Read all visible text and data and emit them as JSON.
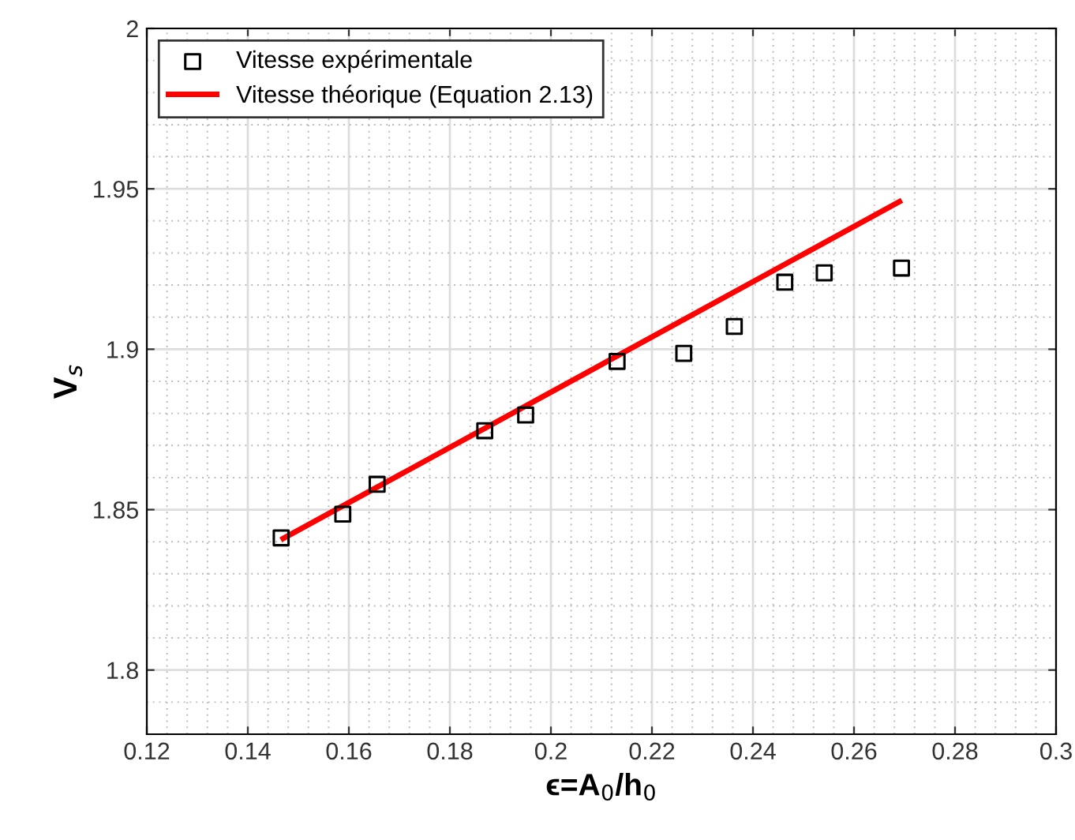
{
  "chart_data": {
    "type": "scatter",
    "xlabel": "ϵ=A$_{0}$/h$_{0}$",
    "ylabel": "V$_{s}$",
    "series": [
      {
        "name": "Vitesse expérimentale",
        "color": "#000000",
        "marker": "square",
        "x": [
          0.1466,
          0.1588,
          0.1656,
          0.1869,
          0.195,
          0.2131,
          0.2263,
          0.2363,
          0.2463,
          0.2541,
          0.2694
        ],
        "values": [
          1.8412,
          1.8486,
          1.8579,
          1.8746,
          1.8795,
          1.8962,
          1.8987,
          1.9071,
          1.9209,
          1.9238,
          1.9253
        ]
      },
      {
        "name": "Vitesse théorique (Equation 2.13)",
        "type": "line",
        "color": "#ff0000",
        "x": [
          0.147,
          0.269
        ],
        "values": [
          1.841,
          1.946
        ]
      }
    ],
    "xlim": [
      0.12,
      0.3
    ],
    "xticks": [
      0.12,
      0.14,
      0.16,
      0.18,
      0.2,
      0.22,
      0.24,
      0.26,
      0.28,
      0.3
    ],
    "ylim": [
      1.78,
      2
    ],
    "yticks": [
      1.8,
      1.85,
      1.9,
      1.95,
      2
    ],
    "grid": true,
    "legend": "top left"
  }
}
